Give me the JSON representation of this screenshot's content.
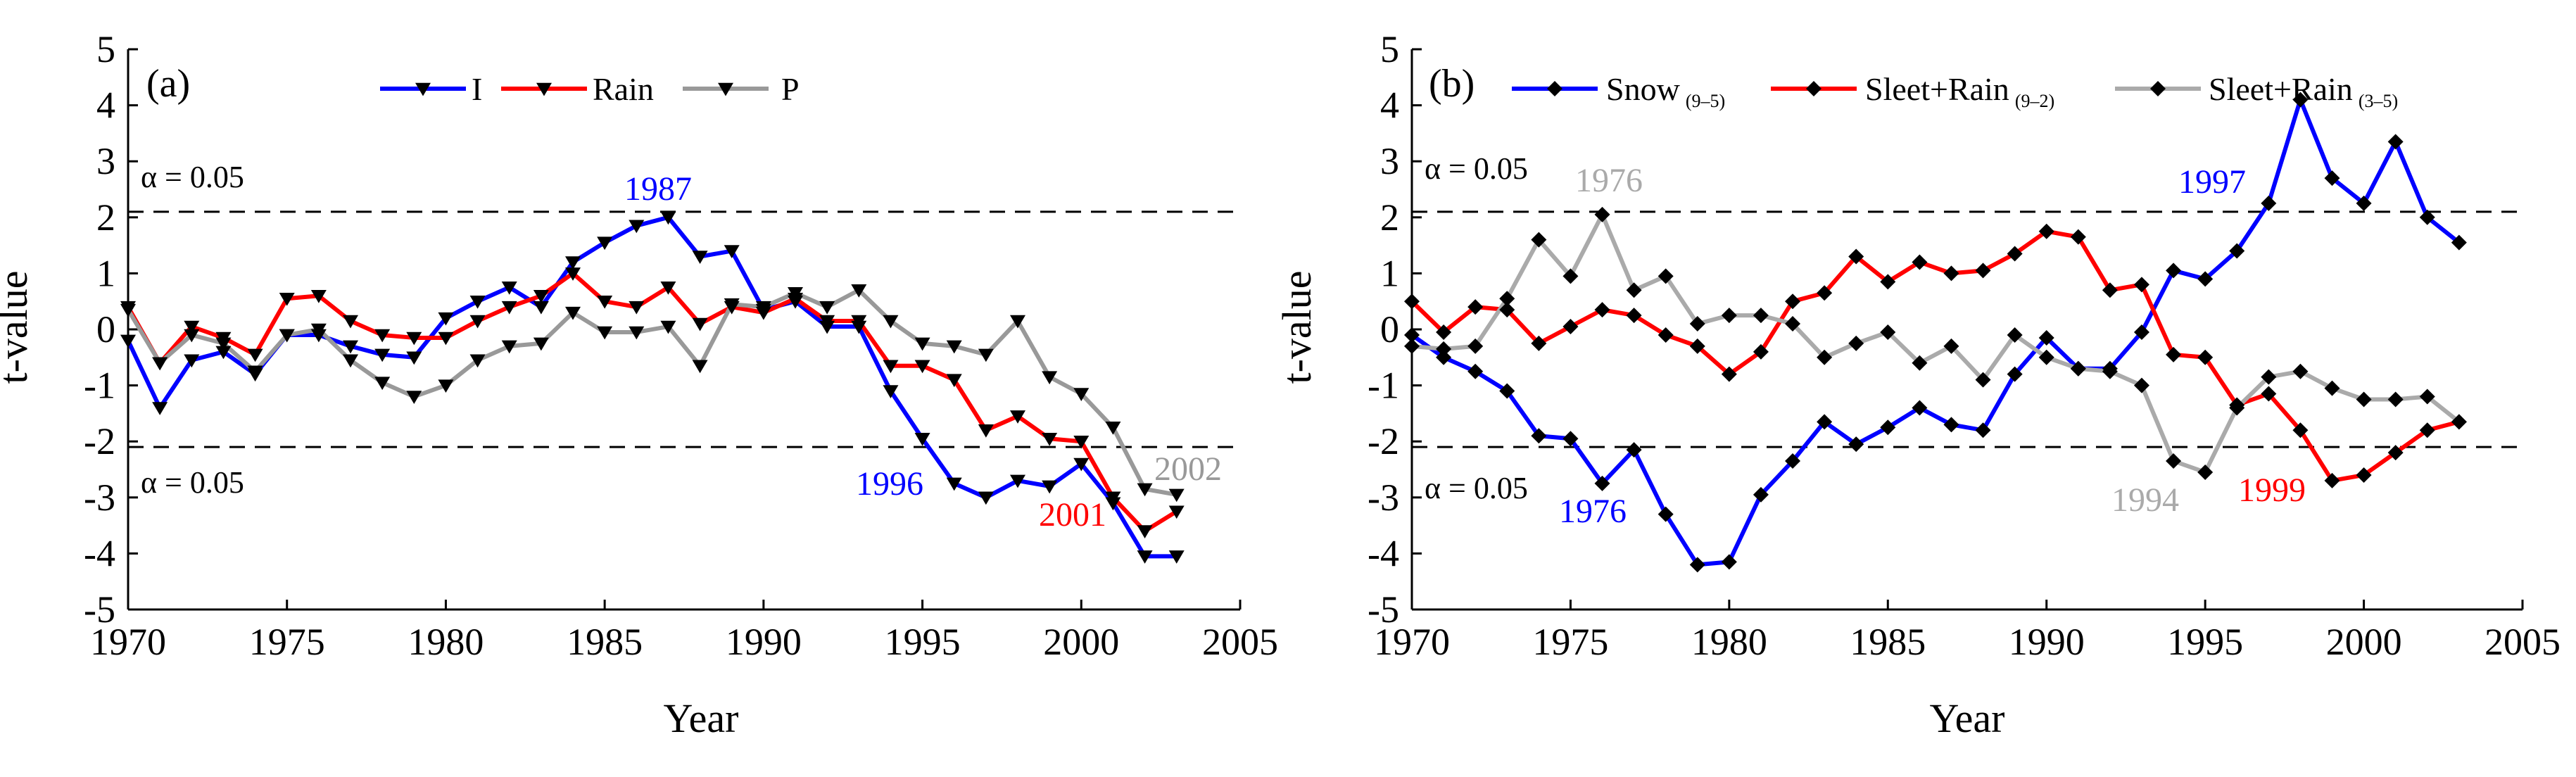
{
  "chart_data": [
    {
      "type": "line",
      "panel_label": "(a)",
      "xlabel": "Year",
      "ylabel": "t-value",
      "xlim": [
        1970,
        2005
      ],
      "ylim": [
        -5,
        5
      ],
      "xticks": [
        1970,
        1975,
        1980,
        1985,
        1990,
        1995,
        2000,
        2005
      ],
      "yticks": [
        -5,
        -4,
        -3,
        -2,
        -1,
        0,
        1,
        2,
        3,
        4,
        5
      ],
      "marker": "triangle-down",
      "legend_position": "top-center",
      "x": [
        1970,
        1971,
        1972,
        1973,
        1974,
        1975,
        1976,
        1977,
        1978,
        1979,
        1980,
        1981,
        1982,
        1983,
        1984,
        1985,
        1986,
        1987,
        1988,
        1989,
        1990,
        1991,
        1992,
        1993,
        1994,
        1995,
        1996,
        1997,
        1998,
        1999,
        2000,
        2001,
        2002,
        2003
      ],
      "series": [
        {
          "name": "I",
          "color": "#0000ff",
          "values": [
            -0.2,
            -1.4,
            -0.55,
            -0.4,
            -0.8,
            -0.1,
            -0.1,
            -0.3,
            -0.45,
            -0.5,
            0.2,
            0.5,
            0.75,
            0.4,
            1.2,
            1.55,
            1.85,
            2.0,
            1.3,
            1.4,
            0.35,
            0.5,
            0.05,
            0.05,
            -1.1,
            -1.95,
            -2.75,
            -3.0,
            -2.7,
            -2.8,
            -2.4,
            -3.1,
            -4.05,
            -4.05
          ]
        },
        {
          "name": "Rain",
          "color": "#ff0000",
          "values": [
            0.4,
            -0.6,
            0.05,
            -0.15,
            -0.45,
            0.55,
            0.6,
            0.15,
            -0.1,
            -0.15,
            -0.15,
            0.15,
            0.4,
            0.6,
            1.0,
            0.5,
            0.4,
            0.75,
            0.1,
            0.4,
            0.3,
            0.55,
            0.15,
            0.15,
            -0.65,
            -0.65,
            -0.9,
            -1.8,
            -1.55,
            -1.95,
            -2.0,
            -3.0,
            -3.6,
            -3.25
          ]
        },
        {
          "name": "P",
          "color": "#999999",
          "values": [
            0.35,
            -0.6,
            -0.1,
            -0.25,
            -0.75,
            -0.1,
            0.0,
            -0.55,
            -0.95,
            -1.2,
            -1.0,
            -0.55,
            -0.3,
            -0.25,
            0.3,
            -0.05,
            -0.05,
            0.05,
            -0.65,
            0.45,
            0.4,
            0.65,
            0.4,
            0.7,
            0.15,
            -0.25,
            -0.3,
            -0.45,
            0.15,
            -0.85,
            -1.15,
            -1.75,
            -2.85,
            -2.95
          ]
        }
      ],
      "reference_lines": [
        {
          "y": 2.1,
          "label": "α = 0.05",
          "style": "dashed"
        },
        {
          "y": -2.1,
          "label": "α = 0.05",
          "style": "dashed"
        }
      ],
      "annotations": [
        {
          "text": "1987",
          "color": "#0000ff",
          "series": "I"
        },
        {
          "text": "1996",
          "color": "#0000ff",
          "series": "I"
        },
        {
          "text": "2001",
          "color": "#ff0000",
          "series": "Rain"
        },
        {
          "text": "2002",
          "color": "#999999",
          "series": "P"
        }
      ]
    },
    {
      "type": "line",
      "panel_label": "(b)",
      "xlabel": "Year",
      "ylabel": "t-value",
      "xlim": [
        1970,
        2005
      ],
      "ylim": [
        -5,
        5
      ],
      "xticks": [
        1970,
        1975,
        1980,
        1985,
        1990,
        1995,
        2000,
        2005
      ],
      "yticks": [
        -5,
        -4,
        -3,
        -2,
        -1,
        0,
        1,
        2,
        3,
        4,
        5
      ],
      "marker": "diamond",
      "legend_position": "top",
      "x": [
        1970,
        1971,
        1972,
        1973,
        1974,
        1975,
        1976,
        1977,
        1978,
        1979,
        1980,
        1981,
        1982,
        1983,
        1984,
        1985,
        1986,
        1987,
        1988,
        1989,
        1990,
        1991,
        1992,
        1993,
        1994,
        1995,
        1996,
        1997,
        1998,
        1999,
        2000,
        2001,
        2002,
        2003
      ],
      "series": [
        {
          "name": "Snow",
          "subscript": "(9–5)",
          "color": "#0000ff",
          "values": [
            -0.1,
            -0.5,
            -0.75,
            -1.1,
            -1.9,
            -1.95,
            -2.75,
            -2.15,
            -3.3,
            -4.2,
            -4.15,
            -2.95,
            -2.35,
            -1.65,
            -2.05,
            -1.75,
            -1.4,
            -1.7,
            -1.8,
            -0.8,
            -0.15,
            -0.7,
            -0.7,
            -0.05,
            1.05,
            0.9,
            1.4,
            2.25,
            4.1,
            2.7,
            2.25,
            3.35,
            2.0,
            1.55
          ]
        },
        {
          "name": "Sleet+Rain",
          "subscript": "(9–2)",
          "color": "#ff0000",
          "values": [
            0.5,
            -0.05,
            0.4,
            0.35,
            -0.25,
            0.05,
            0.35,
            0.25,
            -0.1,
            -0.3,
            -0.8,
            -0.4,
            0.5,
            0.65,
            1.3,
            0.85,
            1.2,
            1.0,
            1.05,
            1.35,
            1.75,
            1.65,
            0.7,
            0.8,
            -0.45,
            -0.5,
            -1.35,
            -1.15,
            -1.8,
            -2.7,
            -2.6,
            -2.2,
            -1.8,
            -1.65
          ]
        },
        {
          "name": "Sleet+Rain",
          "subscript": "(3–5)",
          "color": "#aaaaaa",
          "values": [
            -0.3,
            -0.35,
            -0.3,
            0.55,
            1.6,
            0.95,
            2.05,
            0.7,
            0.95,
            0.1,
            0.25,
            0.25,
            0.1,
            -0.5,
            -0.25,
            -0.05,
            -0.6,
            -0.3,
            -0.9,
            -0.1,
            -0.5,
            -0.7,
            -0.75,
            -1.0,
            -2.35,
            -2.55,
            -1.4,
            -0.85,
            -0.75,
            -1.05,
            -1.25,
            -1.25,
            -1.2,
            -1.65
          ]
        }
      ],
      "reference_lines": [
        {
          "y": 2.1,
          "label": "α = 0.05",
          "style": "dashed"
        },
        {
          "y": -2.1,
          "label": "α = 0.05",
          "style": "dashed"
        }
      ],
      "annotations": [
        {
          "text": "1976",
          "color": "#aaaaaa",
          "series": "Sleet+Rain (3–5)"
        },
        {
          "text": "1976",
          "color": "#0000ff",
          "series": "Snow"
        },
        {
          "text": "1994",
          "color": "#aaaaaa",
          "series": "Sleet+Rain (3–5)"
        },
        {
          "text": "1997",
          "color": "#0000ff",
          "series": "Snow"
        },
        {
          "text": "1999",
          "color": "#ff0000",
          "series": "Sleet+Rain (9–2)"
        }
      ]
    }
  ]
}
